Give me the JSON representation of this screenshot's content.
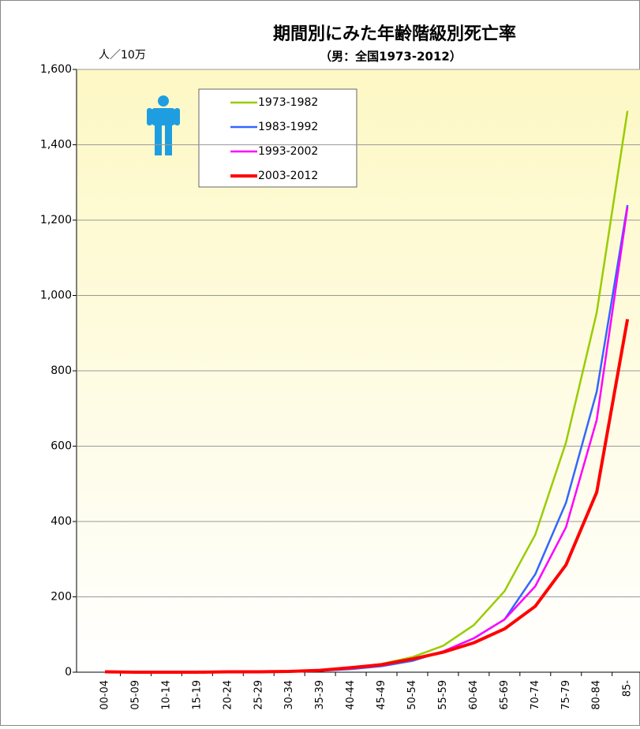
{
  "chart_data": {
    "type": "line",
    "title": "期間別にみた年齢階級別死亡率",
    "subtitle": "（男：全国1973-2012）",
    "y_label": "人／10万",
    "categories": [
      "00-04",
      "05-09",
      "10-14",
      "15-19",
      "20-24",
      "25-29",
      "30-34",
      "35-39",
      "40-44",
      "45-49",
      "50-54",
      "55-59",
      "60-64",
      "65-69",
      "70-74",
      "75-79",
      "80-84",
      "85-"
    ],
    "series": [
      {
        "name": "1973-1982",
        "color": "#99cc00",
        "values": [
          2,
          1,
          1,
          1,
          1,
          2,
          3,
          6,
          12,
          22,
          40,
          70,
          125,
          215,
          365,
          610,
          955,
          1490
        ]
      },
      {
        "name": "1983-1992",
        "color": "#3366ff",
        "values": [
          1,
          0,
          0,
          1,
          1,
          1,
          2,
          4,
          8,
          16,
          30,
          55,
          90,
          140,
          260,
          450,
          745,
          1240
        ]
      },
      {
        "name": "1993-2002",
        "color": "#ff00ff",
        "values": [
          1,
          0,
          0,
          1,
          1,
          1,
          2,
          5,
          10,
          18,
          34,
          55,
          90,
          140,
          228,
          385,
          670,
          1235
        ]
      },
      {
        "name": "2003-2012",
        "color": "#ff0000",
        "values": [
          1,
          0,
          0,
          0,
          1,
          1,
          2,
          5,
          12,
          20,
          35,
          53,
          78,
          115,
          175,
          285,
          478,
          937
        ]
      }
    ],
    "ylim": [
      0,
      1600
    ],
    "yticks": [
      0,
      200,
      400,
      600,
      800,
      {
        "value": 1000,
        "label": "1,000"
      },
      {
        "value": 1200,
        "label": "1,200"
      },
      {
        "value": 1400,
        "label": "1,400"
      },
      {
        "value": 1600,
        "label": "1,600"
      }
    ],
    "grid": true
  }
}
